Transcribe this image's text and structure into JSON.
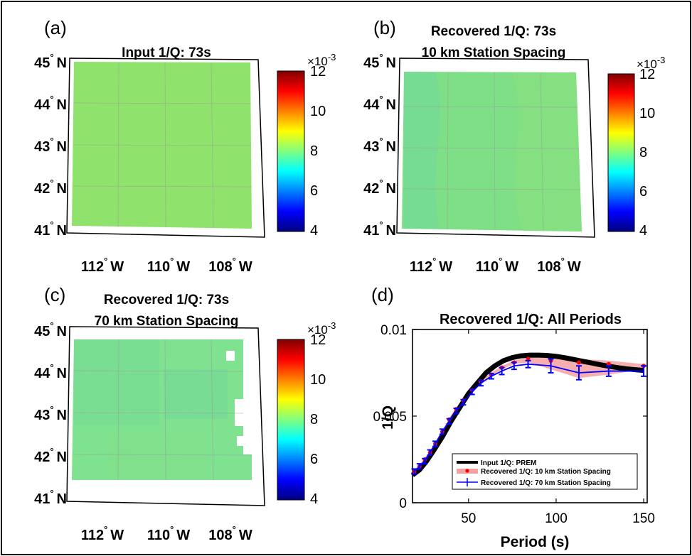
{
  "maps": [
    {
      "letter": "(a)",
      "title_lines": [
        "Input 1/Q: 73s"
      ],
      "lat_labels": [
        "45",
        "44",
        "43",
        "42",
        "41"
      ],
      "lat_hemisphere": "N",
      "lon_labels": [
        "112",
        "110",
        "108"
      ],
      "lon_hemisphere": "W",
      "degree_symbol": "°",
      "field_color": "#8fe36c",
      "colorbar": {
        "ticks": [
          "12",
          "10",
          "8",
          "6",
          "4"
        ],
        "exponent": "×10",
        "exponent_power": "-3",
        "min": 4,
        "max": 12
      }
    },
    {
      "letter": "(b)",
      "title_lines": [
        "Recovered 1/Q: 73s",
        "10 km Station Spacing"
      ],
      "lat_labels": [
        "45",
        "44",
        "43",
        "42",
        "41"
      ],
      "lat_hemisphere": "N",
      "lon_labels": [
        "112",
        "110",
        "108"
      ],
      "lon_hemisphere": "W",
      "degree_symbol": "°",
      "field_color": "#7fdf86",
      "colorbar": {
        "ticks": [
          "12",
          "10",
          "8",
          "6",
          "4"
        ],
        "exponent": "×10",
        "exponent_power": "-3",
        "min": 4,
        "max": 12
      }
    },
    {
      "letter": "(c)",
      "title_lines": [
        "Recovered 1/Q: 73s",
        "70 km Station Spacing"
      ],
      "lat_labels": [
        "45",
        "44",
        "43",
        "42",
        "41"
      ],
      "lat_hemisphere": "N",
      "lon_labels": [
        "112",
        "110",
        "108"
      ],
      "lon_hemisphere": "W",
      "degree_symbol": "°",
      "field_color": "#7ee290",
      "colorbar": {
        "ticks": [
          "12",
          "10",
          "8",
          "6",
          "4"
        ],
        "exponent": "×10",
        "exponent_power": "-3",
        "min": 4,
        "max": 12
      }
    }
  ],
  "colormap": [
    "#00007f",
    "#0000ff",
    "#0080ff",
    "#00ffff",
    "#80ff80",
    "#ffff00",
    "#ff8000",
    "#ff0000",
    "#7f0000"
  ],
  "chart_data": {
    "type": "line",
    "letter": "(d)",
    "title": "Recovered 1/Q: All Periods",
    "xlabel": "Period (s)",
    "ylabel": "1/Q",
    "xlim": [
      18,
      152
    ],
    "ylim": [
      0,
      0.01
    ],
    "xticks": [
      50,
      100,
      150
    ],
    "xtick_labels": [
      "50",
      "100",
      "150"
    ],
    "yticks": [
      0,
      0.005,
      0.01
    ],
    "ytick_labels": [
      "0",
      "0.005",
      "0.01"
    ],
    "legend_position": "bottom-right",
    "series": [
      {
        "name": "Input 1/Q: PREM",
        "color": "#000000",
        "style": "line",
        "x": [
          18,
          22,
          26,
          30,
          35,
          40,
          45,
          50,
          55,
          60,
          65,
          70,
          75,
          80,
          85,
          90,
          95,
          100,
          105,
          110,
          115,
          120,
          125,
          130,
          135,
          140,
          145,
          150
        ],
        "y": [
          0.0016,
          0.0019,
          0.0024,
          0.003,
          0.0038,
          0.0047,
          0.0055,
          0.0063,
          0.0069,
          0.0075,
          0.0079,
          0.0082,
          0.00838,
          0.00848,
          0.00852,
          0.00852,
          0.0085,
          0.00845,
          0.00837,
          0.00827,
          0.00817,
          0.00807,
          0.00797,
          0.00788,
          0.0078,
          0.00773,
          0.00768,
          0.00764
        ]
      },
      {
        "name": "Recovered 1/Q: 10 km Station Spacing",
        "color": "#ff0000",
        "style": "dots-band",
        "x": [
          19,
          22,
          25,
          28,
          31,
          35,
          39,
          43,
          47,
          52,
          57,
          63,
          69,
          76,
          84,
          97,
          113,
          130,
          150
        ],
        "y": [
          0.0018,
          0.0021,
          0.0025,
          0.0029,
          0.0034,
          0.0041,
          0.0048,
          0.0054,
          0.0059,
          0.0065,
          0.007,
          0.0074,
          0.0078,
          0.0081,
          0.0083,
          0.0082,
          0.0081,
          0.008,
          0.0079
        ],
        "band_upper": [
          0.0019,
          0.0022,
          0.0026,
          0.003,
          0.0035,
          0.0042,
          0.0049,
          0.0055,
          0.006,
          0.0066,
          0.0071,
          0.0075,
          0.0079,
          0.0082,
          0.0084,
          0.0084,
          0.0083,
          0.0082,
          0.008
        ],
        "band_lower": [
          0.0017,
          0.002,
          0.0024,
          0.0028,
          0.0033,
          0.004,
          0.0047,
          0.0053,
          0.0058,
          0.0064,
          0.0069,
          0.0073,
          0.0077,
          0.008,
          0.0081,
          0.0077,
          0.0072,
          0.0074,
          0.0077
        ]
      },
      {
        "name": "Recovered 1/Q: 70 km Station Spacing",
        "color": "#0000ff",
        "style": "errorbar",
        "x": [
          19,
          22,
          25,
          28,
          31,
          35,
          39,
          43,
          47,
          52,
          57,
          63,
          69,
          76,
          84,
          97,
          113,
          130,
          150
        ],
        "y": [
          0.0018,
          0.0021,
          0.0024,
          0.0029,
          0.0034,
          0.0041,
          0.0047,
          0.0053,
          0.0058,
          0.0064,
          0.0069,
          0.0073,
          0.0076,
          0.0079,
          0.008,
          0.0079,
          0.0075,
          0.0076,
          0.0076
        ],
        "err": [
          0.00015,
          0.00015,
          0.00015,
          0.00015,
          0.00015,
          0.00015,
          0.00015,
          0.00015,
          0.00015,
          0.00015,
          0.00015,
          0.00015,
          0.0002,
          0.0002,
          0.0002,
          0.0004,
          0.0004,
          0.0003,
          0.0003
        ]
      }
    ]
  }
}
